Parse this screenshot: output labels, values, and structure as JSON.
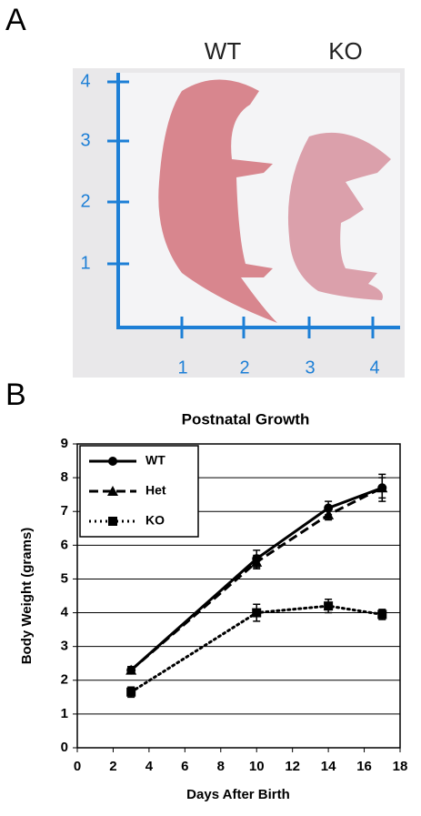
{
  "panel_a": {
    "label": "A",
    "pup_labels": [
      "WT",
      "KO"
    ],
    "ruler_x": [
      "1",
      "2",
      "3",
      "4"
    ],
    "ruler_y": [
      "1",
      "2",
      "3",
      "4"
    ]
  },
  "panel_b": {
    "label": "B"
  },
  "chart_data": {
    "type": "line",
    "title": "Postnatal Growth",
    "x_label": "Days After Birth",
    "y_label": "Body Weight (grams)",
    "x": [
      3,
      10,
      14,
      17
    ],
    "series": [
      {
        "name": "WT",
        "color": "#000000",
        "line_style": "solid",
        "marker": "circle",
        "values": [
          2.3,
          5.6,
          7.1,
          7.7
        ],
        "errors": [
          0.1,
          0.25,
          0.2,
          0.4
        ]
      },
      {
        "name": "Het",
        "color": "#000000",
        "line_style": "dashed",
        "marker": "triangle",
        "values": [
          2.3,
          5.5,
          6.9,
          7.7
        ],
        "errors": [
          0.1,
          0.2,
          0.15,
          0.3
        ]
      },
      {
        "name": "KO",
        "color": "#000000",
        "line_style": "dotted",
        "marker": "square",
        "values": [
          1.65,
          4.0,
          4.2,
          3.95
        ],
        "errors": [
          0.15,
          0.25,
          0.2,
          0.15
        ]
      }
    ],
    "xlim": [
      0,
      18
    ],
    "xticks": [
      0,
      2,
      4,
      6,
      8,
      10,
      12,
      14,
      16,
      18
    ],
    "ylim": [
      0,
      9
    ],
    "yticks": [
      0,
      1,
      2,
      3,
      4,
      5,
      6,
      7,
      8,
      9
    ],
    "grid": true,
    "legend": "upper left"
  }
}
